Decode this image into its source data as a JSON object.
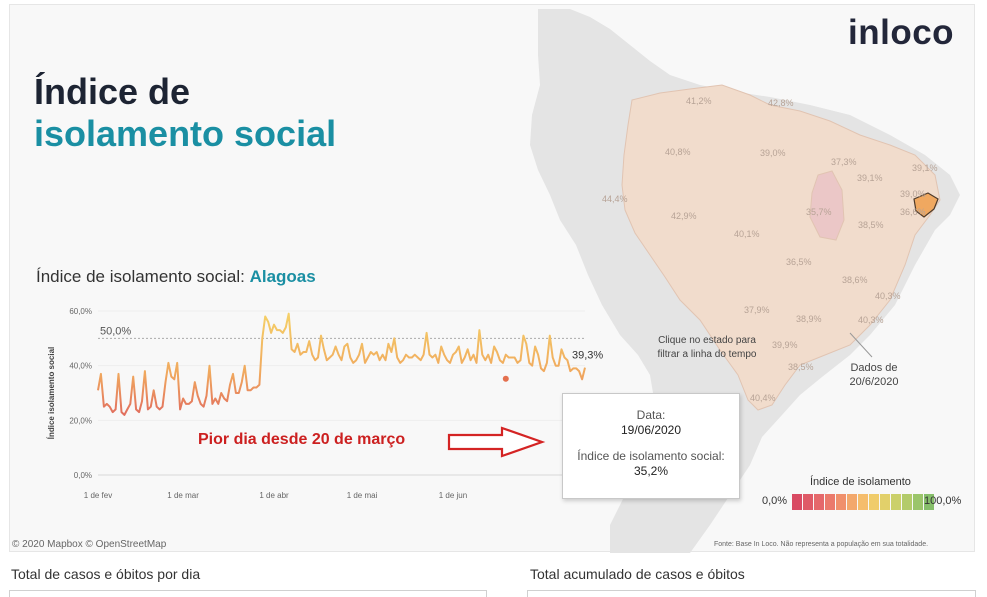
{
  "header": {
    "title_line1": "Índice de",
    "title_line2": "isolamento social",
    "logo": "inloco"
  },
  "subtitle": {
    "prefix": "Índice de isolamento social: ",
    "state": "Alagoas"
  },
  "annotation": "Pior dia desde 20 de março",
  "tooltip": {
    "date_label": "Data:",
    "date_value": "19/06/2020",
    "index_label": "Índice de isolamento social:",
    "index_value": "35,2%"
  },
  "map": {
    "hint": "Clique no estado para filtrar a linha do tempo",
    "date_note": "Dados de 20/6/2020",
    "copyright": "© 2020 Mapbox © OpenStreetMap",
    "source": "Fonte: Base In Loco. Não representa a população em sua totalidade.",
    "state_labels": [
      "41,2%",
      "42,8%",
      "40,8%",
      "39,0%",
      "37,3%",
      "39,1%",
      "39,1%",
      "39,0%",
      "36,6%",
      "44,4%",
      "42,9%",
      "35,7%",
      "40,1%",
      "38,5%",
      "36,5%",
      "38,6%",
      "40,3%",
      "37,9%",
      "38,9%",
      "40,3%",
      "39,9%",
      "38,5%",
      "40,4%"
    ]
  },
  "legend": {
    "title": "Índice de isolamento",
    "min": "0,0%",
    "max": "100,0%",
    "colors": [
      "#d94a63",
      "#df5a67",
      "#e5686b",
      "#eb7a6c",
      "#f0906c",
      "#f3a86c",
      "#f5bd6c",
      "#f0cc6a",
      "#e2d06a",
      "#cbd06a",
      "#b3cb6a",
      "#9bc56a",
      "#86be6a"
    ]
  },
  "bottom": {
    "left_title": "Total de casos e óbitos por dia",
    "right_title": "Total acumulado de casos e óbitos"
  },
  "colors": {
    "accent": "#1a8fa3",
    "headline": "#1d2433",
    "annotation": "#cc2020",
    "map_fill": "#f1dccc",
    "highlight_state": "#f0a860"
  },
  "chart_data": {
    "type": "line",
    "ylabel": "Índice isolamento social",
    "y_ticks": [
      "0,0%",
      "20,0%",
      "40,0%",
      "60,0%"
    ],
    "y_tick_values": [
      0,
      20,
      40,
      60
    ],
    "ylim": [
      0,
      60
    ],
    "x_ticks": [
      "1 de fev",
      "1 de mar",
      "1 de abr",
      "1 de mai",
      "1 de jun"
    ],
    "x_tick_dates": [
      "2020-02-01",
      "2020-03-01",
      "2020-04-01",
      "2020-05-01",
      "2020-06-01"
    ],
    "x_start": "2020-02-01",
    "reference_line": {
      "value": 50.0,
      "label": "50,0%"
    },
    "last_label": "39,3%",
    "grid": true,
    "values": [
      31,
      37,
      25,
      26,
      25,
      23,
      24,
      37,
      23,
      22,
      24,
      26,
      36,
      24,
      23,
      27,
      38,
      24,
      25,
      31,
      25,
      24,
      25,
      34,
      41,
      36,
      35,
      41,
      24,
      28,
      26,
      26,
      27,
      34,
      29,
      26,
      25,
      29,
      40,
      26,
      28,
      26,
      30,
      28,
      27,
      33,
      37,
      30,
      30,
      34,
      40,
      31,
      31,
      32,
      32,
      33,
      50,
      58,
      56,
      52,
      55,
      53,
      53,
      52,
      54,
      59,
      46,
      45,
      48,
      44,
      45,
      45,
      49,
      44,
      42,
      43,
      51,
      46,
      42,
      43,
      44,
      47,
      44,
      42,
      47,
      48,
      43,
      41,
      42,
      44,
      48,
      41,
      43,
      45,
      44,
      45,
      42,
      44,
      42,
      48,
      45,
      50,
      43,
      41,
      42,
      44,
      43,
      43,
      44,
      43,
      42,
      44,
      52,
      44,
      43,
      44,
      41,
      47,
      44,
      42,
      41,
      44,
      45,
      47,
      41,
      43,
      46,
      42,
      44,
      41,
      53,
      44,
      42,
      44,
      41,
      47,
      45,
      42,
      41,
      44,
      43,
      43,
      43,
      41,
      42,
      51,
      48,
      41,
      40,
      47,
      44,
      39,
      38,
      41,
      51,
      43,
      40,
      40,
      46,
      43,
      42,
      38,
      39,
      39,
      38,
      35,
      39.3
    ],
    "highlight": {
      "date": "2020-06-19",
      "value": 35.2
    }
  }
}
